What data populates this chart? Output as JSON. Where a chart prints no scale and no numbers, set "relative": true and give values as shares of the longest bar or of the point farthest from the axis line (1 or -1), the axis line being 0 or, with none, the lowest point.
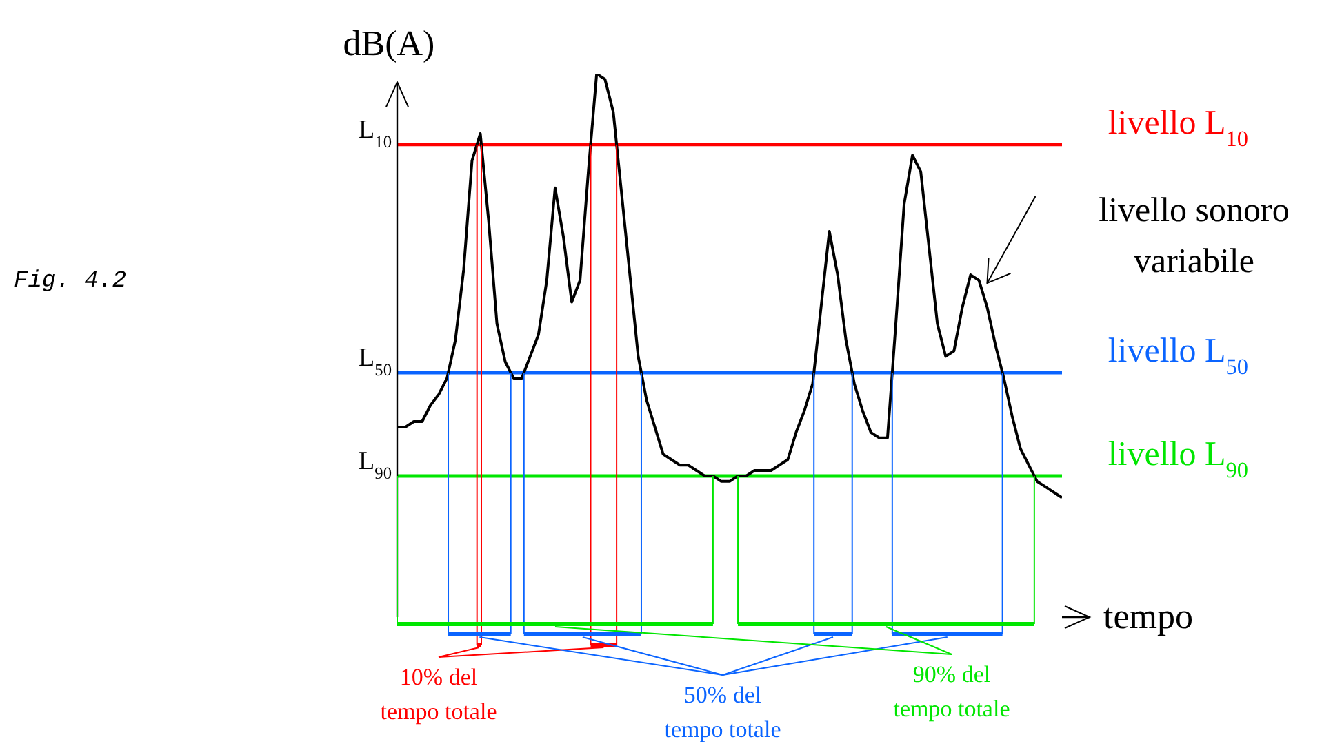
{
  "chart_data": {
    "type": "line",
    "relative": true,
    "xlabel": "tempo",
    "ylabel": "dB(A)",
    "marker": "none",
    "legend": false,
    "categories": [
      null,
      null,
      null,
      null,
      null,
      null,
      null,
      null,
      null,
      null,
      null,
      null,
      null,
      null,
      null,
      null,
      null,
      null,
      null,
      null,
      null,
      null,
      null,
      null,
      null,
      null,
      null,
      null,
      null,
      null,
      null,
      null,
      null,
      null,
      null,
      null,
      null,
      null,
      null,
      null,
      null,
      null,
      null,
      null,
      null,
      null,
      null,
      null,
      null,
      null,
      null,
      null,
      null,
      null,
      null,
      null,
      null,
      null,
      null,
      null,
      null,
      null,
      null,
      null,
      null,
      null,
      null,
      null,
      null,
      null,
      null,
      null,
      null,
      null,
      null,
      null,
      null,
      null,
      null,
      null,
      null
    ],
    "series": [
      {
        "color": "#000000",
        "values": [
          0.35,
          0.35,
          0.36,
          0.36,
          0.39,
          0.41,
          0.44,
          0.51,
          0.64,
          0.84,
          0.89,
          0.73,
          0.54,
          0.47,
          0.44,
          0.44,
          0.48,
          0.52,
          0.62,
          0.79,
          0.7,
          0.58,
          0.62,
          0.82,
          1,
          0.99,
          0.93,
          0.78,
          0.63,
          0.48,
          0.4,
          0.35,
          0.3,
          0.29,
          0.28,
          0.28,
          0.27,
          0.26,
          0.26,
          0.25,
          0.25,
          0.26,
          0.26,
          0.27,
          0.27,
          0.27,
          0.28,
          0.29,
          0.34,
          0.38,
          0.43,
          0.57,
          0.71,
          0.63,
          0.51,
          0.43,
          0.38,
          0.34,
          0.33,
          0.33,
          0.54,
          0.76,
          0.85,
          0.82,
          0.68,
          0.54,
          0.48,
          0.49,
          0.57,
          0.63,
          0.62,
          0.57,
          0.5,
          0.44,
          0.37,
          0.31,
          0.28,
          0.25,
          0.24,
          0.23,
          0.22
        ]
      }
    ],
    "ref_lines": [
      {
        "axis": "y",
        "value": 0.87,
        "label": "livello L$_{10}$",
        "color": "#ff0000"
      },
      {
        "axis": "y",
        "value": 0.45,
        "label": "livello L$_{50}$",
        "color": "#0a64ff"
      },
      {
        "axis": "y",
        "value": 0.26,
        "label": "livello L$_{90}$",
        "color": "#00e600"
      }
    ],
    "annotations": [
      "Fig. 4.2",
      "livello sonoro variabile",
      "10% del tempo totale",
      "50% del tempo totale",
      "90% del tempo totale",
      "L$_{10}$",
      "L$_{50}$",
      "L$_{90}$"
    ]
  }
}
